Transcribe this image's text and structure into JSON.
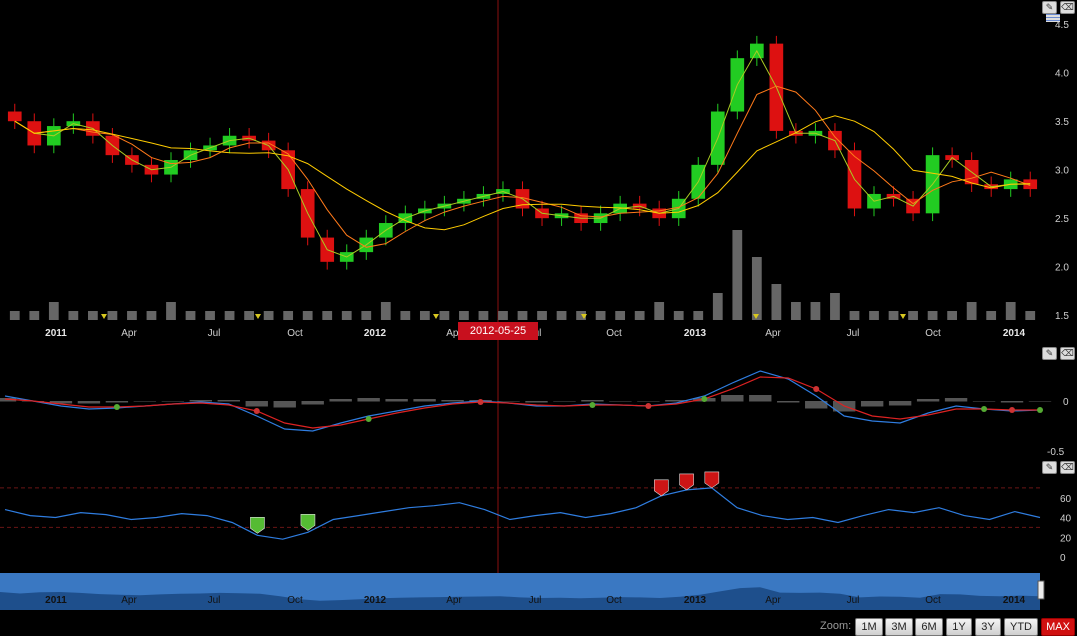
{
  "colors": {
    "up": "#22cc22",
    "down": "#dd1111",
    "ma_fast": "#aacc22",
    "ma_mid": "#ff7a1a",
    "ma_slow": "#ffcc00",
    "macd": "#2f7de0",
    "signal": "#dd2222",
    "rsi": "#2f7de0",
    "volume": "#666666",
    "accent": "#c8101e"
  },
  "crosshair": {
    "date": "2012-05-25"
  },
  "icons": [
    "pencil-icon",
    "eraser-icon",
    "menu-icon"
  ],
  "zoom": {
    "label": "Zoom:",
    "buttons": [
      "1M",
      "3M",
      "6M",
      "1Y",
      "3Y",
      "YTD",
      "MAX"
    ],
    "active": "MAX"
  },
  "chart_data": [
    {
      "type": "candlestick",
      "panel": "price",
      "x_axis": {
        "ticks": [
          "2011",
          "Apr",
          "Jul",
          "Oct",
          "2012",
          "Apr",
          "Jul",
          "Oct",
          "2013",
          "Apr",
          "Jul",
          "Oct",
          "2014"
        ],
        "range": [
          "2010-12",
          "2014-02"
        ]
      },
      "y_axis": {
        "ticks": [
          "1.5",
          "2.0",
          "2.5",
          "3.0",
          "3.5",
          "4.0",
          "4.5"
        ],
        "range": [
          1.45,
          4.75
        ]
      },
      "close_series": [
        3.5,
        3.25,
        3.45,
        3.5,
        3.35,
        3.15,
        3.05,
        2.95,
        3.1,
        3.2,
        3.25,
        3.35,
        3.3,
        3.2,
        2.8,
        2.3,
        2.05,
        2.15,
        2.3,
        2.45,
        2.55,
        2.6,
        2.65,
        2.7,
        2.75,
        2.8,
        2.6,
        2.5,
        2.55,
        2.45,
        2.55,
        2.65,
        2.6,
        2.5,
        2.7,
        3.05,
        3.6,
        4.15,
        4.3,
        3.4,
        3.35,
        3.4,
        3.2,
        2.6,
        2.75,
        2.7,
        2.55,
        3.15,
        3.1,
        2.85,
        2.8,
        2.9,
        2.8
      ],
      "moving_averages": [
        "fast",
        "mid",
        "slow"
      ],
      "grid": false
    },
    {
      "type": "bar",
      "panel": "volume",
      "values": [
        1,
        1,
        2,
        1,
        1,
        1,
        1,
        1,
        2,
        1,
        1,
        1,
        1,
        1,
        1,
        1,
        1,
        1,
        1,
        2,
        1,
        1,
        1,
        1,
        1,
        1,
        1,
        1,
        1,
        1,
        1,
        1,
        1,
        2,
        1,
        1,
        3,
        10,
        7,
        4,
        2,
        2,
        3,
        1,
        1,
        1,
        1,
        1,
        1,
        2,
        1,
        2,
        1
      ]
    },
    {
      "type": "line",
      "panel": "macd",
      "y_axis": {
        "ticks": [
          "0",
          "-0.5"
        ]
      },
      "series": [
        {
          "values": [
            0.05,
            0.0,
            -0.05,
            -0.08,
            -0.07,
            -0.05,
            -0.03,
            -0.01,
            -0.03,
            -0.15,
            -0.28,
            -0.3,
            -0.22,
            -0.15,
            -0.1,
            -0.05,
            -0.02,
            0.0,
            -0.02,
            -0.05,
            -0.05,
            -0.03,
            -0.04,
            -0.05,
            -0.02,
            0.05,
            0.18,
            0.3,
            0.22,
            0.05,
            -0.15,
            -0.2,
            -0.22,
            -0.12,
            -0.05,
            -0.08,
            -0.1,
            -0.09
          ]
        },
        {
          "values": [
            0.02,
            0.0,
            -0.03,
            -0.06,
            -0.06,
            -0.05,
            -0.03,
            -0.02,
            -0.04,
            -0.1,
            -0.22,
            -0.27,
            -0.24,
            -0.18,
            -0.12,
            -0.07,
            -0.03,
            -0.01,
            -0.02,
            -0.04,
            -0.05,
            -0.04,
            -0.04,
            -0.05,
            -0.03,
            0.02,
            0.12,
            0.24,
            0.23,
            0.12,
            -0.05,
            -0.15,
            -0.18,
            -0.14,
            -0.08,
            -0.08,
            -0.09,
            -0.09
          ]
        }
      ]
    },
    {
      "type": "line",
      "panel": "rsi",
      "y_axis": {
        "ticks": [
          "60",
          "40",
          "20",
          "0"
        ],
        "range": [
          0,
          75
        ]
      },
      "series": [
        {
          "values": [
            48,
            42,
            40,
            45,
            43,
            38,
            40,
            44,
            42,
            35,
            22,
            18,
            25,
            38,
            42,
            46,
            50,
            52,
            55,
            48,
            38,
            42,
            45,
            40,
            44,
            50,
            62,
            68,
            70,
            50,
            42,
            38,
            40,
            35,
            42,
            48,
            45,
            50,
            42,
            38,
            46,
            40
          ]
        }
      ]
    }
  ]
}
